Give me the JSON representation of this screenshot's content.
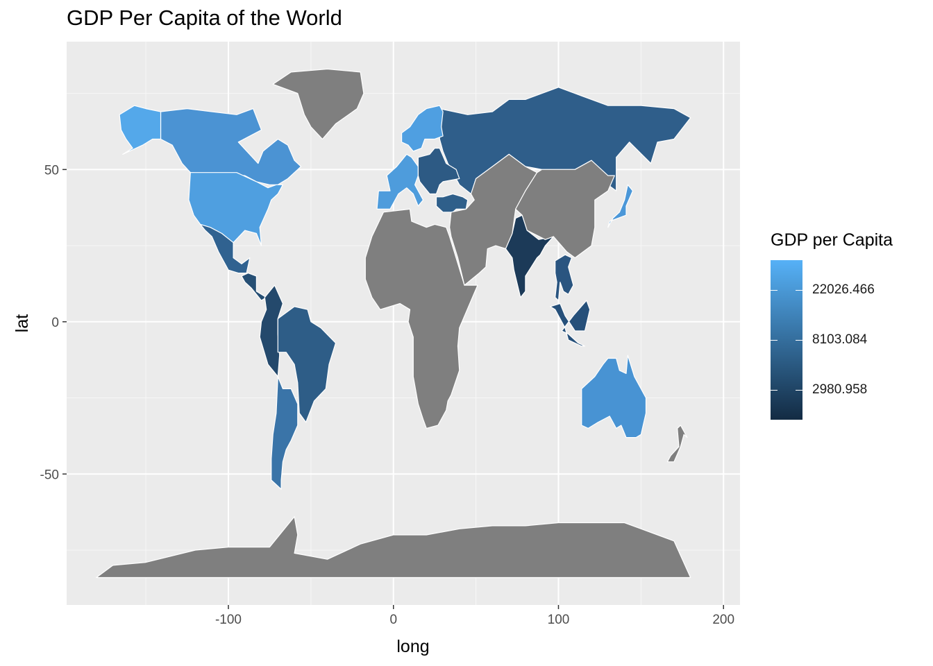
{
  "title": "GDP Per Capita of the World",
  "chart_data": {
    "type": "choropleth",
    "title": "GDP Per Capita of the World",
    "xlabel": "long",
    "ylabel": "lat",
    "xlim": [
      -198,
      210
    ],
    "ylim": [
      -93,
      92
    ],
    "x_ticks": [
      -100,
      0,
      100,
      200
    ],
    "x_tick_labels": [
      "-100",
      "0",
      "100",
      "200"
    ],
    "y_ticks": [
      -50,
      0,
      50
    ],
    "y_tick_labels": [
      "-50",
      "0",
      "50"
    ],
    "grid": true,
    "panel_background": "#ebebeb",
    "missing_color": "#7f7f7f",
    "border_color": "#ffffff",
    "legend": {
      "title": "GDP per Capita",
      "position": "right",
      "scale": "log",
      "color_low": "#132b43",
      "color_high": "#56b1f7",
      "tick_values": [
        2980.958,
        8103.084,
        22026.466
      ],
      "tick_labels": [
        "2980.958",
        "8103.084",
        "22026.466"
      ],
      "range": [
        1650,
        40000
      ]
    },
    "regions": [
      {
        "region": "Canada",
        "fill": "#4b93d3"
      },
      {
        "region": "Alaska (USA)",
        "fill": "#54a8ea"
      },
      {
        "region": "USA",
        "fill": "#4f9fe0"
      },
      {
        "region": "Greenland",
        "fill": "#7f7f7f"
      },
      {
        "region": "Mexico",
        "fill": "#306290"
      },
      {
        "region": "Central America",
        "fill": "#264f74"
      },
      {
        "region": "Colombia / Ecuador / Peru",
        "fill": "#24496c"
      },
      {
        "region": "Brazil",
        "fill": "#2e5d87"
      },
      {
        "region": "Argentina / Chile",
        "fill": "#3a74a8"
      },
      {
        "region": "Russia",
        "fill": "#2f5e8a"
      },
      {
        "region": "Western Europe",
        "fill": "#4e9cdc"
      },
      {
        "region": "Scandinavia",
        "fill": "#4f9fe1"
      },
      {
        "region": "Eastern Europe",
        "fill": "#2d5a84"
      },
      {
        "region": "Turkey",
        "fill": "#2f5f8a"
      },
      {
        "region": "India",
        "fill": "#1c3a58"
      },
      {
        "region": "Thailand / Vietnam",
        "fill": "#2a5580"
      },
      {
        "region": "Malaysia / Indonesia",
        "fill": "#26507a"
      },
      {
        "region": "Japan",
        "fill": "#4b97d8"
      },
      {
        "region": "Australia",
        "fill": "#4893d3"
      },
      {
        "region": "Africa",
        "fill": "#7f7f7f"
      },
      {
        "region": "Middle East / Central Asia",
        "fill": "#7f7f7f"
      },
      {
        "region": "China / Mongolia",
        "fill": "#7f7f7f"
      },
      {
        "region": "Antarctica",
        "fill": "#7f7f7f"
      },
      {
        "region": "New Zealand",
        "fill": "#7f7f7f"
      }
    ]
  }
}
